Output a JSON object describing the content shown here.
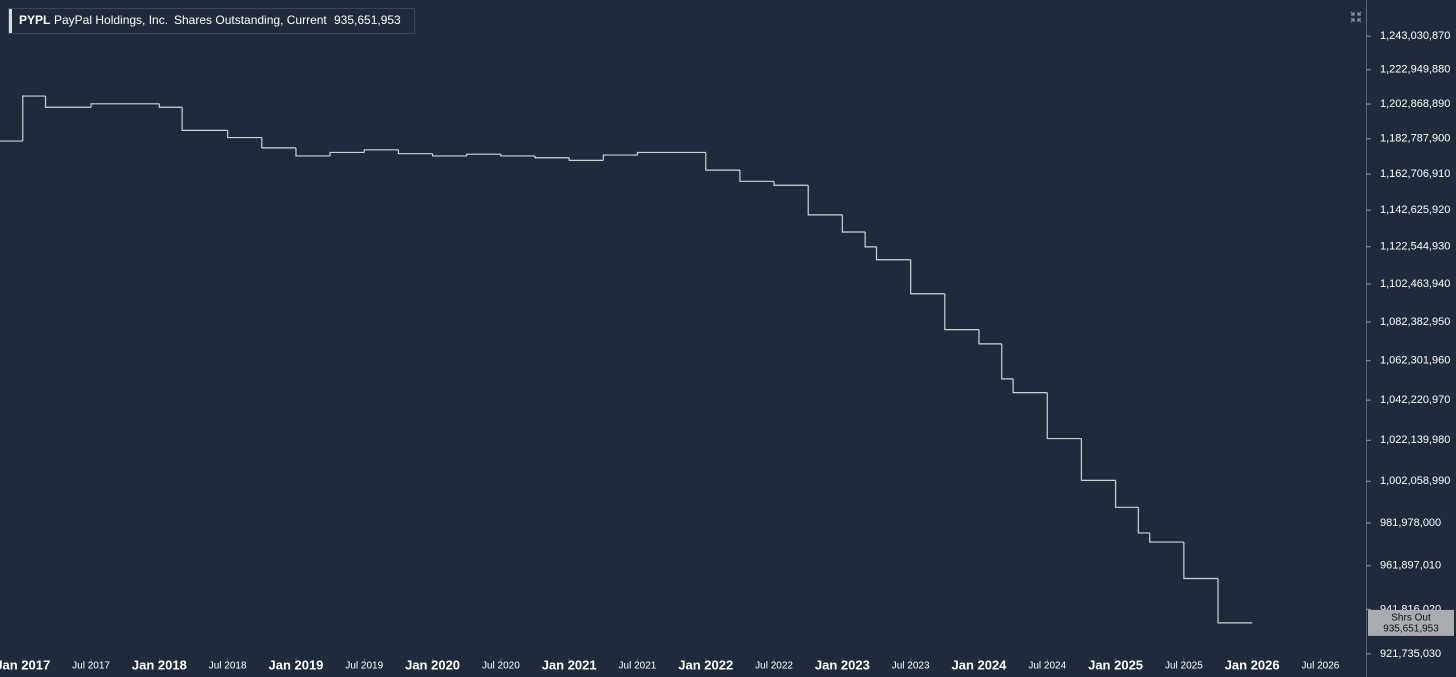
{
  "header": {
    "ticker": "PYPL",
    "company": "PayPal Holdings, Inc.",
    "metric": "Shares Outstanding, Current",
    "current_value": "935,651,953"
  },
  "chart_data": {
    "type": "step-line",
    "series_short_name": "Shrs Out",
    "log_scale": true,
    "line_color": "#cfd3d8",
    "x": [
      "2016-11",
      "2017-01",
      "2017-03",
      "2017-07",
      "2018-01",
      "2018-03",
      "2018-07",
      "2018-10",
      "2019-01",
      "2019-04",
      "2019-07",
      "2019-10",
      "2020-01",
      "2020-04",
      "2020-07",
      "2020-10",
      "2021-01",
      "2021-04",
      "2021-07",
      "2022-01",
      "2022-04",
      "2022-07",
      "2022-10",
      "2023-01",
      "2023-03",
      "2023-04",
      "2023-07",
      "2023-10",
      "2024-01",
      "2024-03",
      "2024-04",
      "2024-07",
      "2024-10",
      "2025-01",
      "2025-03",
      "2025-04",
      "2025-07",
      "2025-10",
      "2026-01"
    ],
    "values": [
      1181500000,
      1207500000,
      1201000000,
      1203000000,
      1201000000,
      1187600000,
      1183500000,
      1177600000,
      1173000000,
      1175000000,
      1176500000,
      1174300000,
      1173000000,
      1174000000,
      1173000000,
      1172000000,
      1170500000,
      1173500000,
      1175000000,
      1165000000,
      1158700000,
      1156500000,
      1140000000,
      1130600000,
      1122500000,
      1115500000,
      1097300000,
      1078400000,
      1071000000,
      1053000000,
      1046000000,
      1023000000,
      1002500000,
      989500000,
      977300000,
      973000000,
      956000000,
      935651953,
      935651953
    ],
    "xlim": [
      "2016-11",
      "2026-11"
    ],
    "xticks": [
      {
        "value": "2017-01",
        "label": "Jan 2017"
      },
      {
        "value": "2017-07",
        "label": "Jul 2017"
      },
      {
        "value": "2018-01",
        "label": "Jan 2018"
      },
      {
        "value": "2018-07",
        "label": "Jul 2018"
      },
      {
        "value": "2019-01",
        "label": "Jan 2019"
      },
      {
        "value": "2019-07",
        "label": "Jul 2019"
      },
      {
        "value": "2020-01",
        "label": "Jan 2020"
      },
      {
        "value": "2020-07",
        "label": "Jul 2020"
      },
      {
        "value": "2021-01",
        "label": "Jan 2021"
      },
      {
        "value": "2021-07",
        "label": "Jul 2021"
      },
      {
        "value": "2022-01",
        "label": "Jan 2022"
      },
      {
        "value": "2022-07",
        "label": "Jul 2022"
      },
      {
        "value": "2023-01",
        "label": "Jan 2023"
      },
      {
        "value": "2023-07",
        "label": "Jul 2023"
      },
      {
        "value": "2024-01",
        "label": "Jan 2024"
      },
      {
        "value": "2024-07",
        "label": "Jul 2024"
      },
      {
        "value": "2025-01",
        "label": "Jan 2025"
      },
      {
        "value": "2025-07",
        "label": "Jul 2025"
      },
      {
        "value": "2026-01",
        "label": "Jan 2026"
      },
      {
        "value": "2026-07",
        "label": "Jul 2026"
      }
    ],
    "ylim": [
      919000000,
      1265000000
    ],
    "yticks": [
      {
        "value": 1243030870,
        "label": "1,243,030,870"
      },
      {
        "value": 1222949880,
        "label": "1,222,949,880"
      },
      {
        "value": 1202868890,
        "label": "1,202,868,890"
      },
      {
        "value": 1182787900,
        "label": "1,182,787,900"
      },
      {
        "value": 1162706910,
        "label": "1,162,706,910"
      },
      {
        "value": 1142625920,
        "label": "1,142,625,920"
      },
      {
        "value": 1122544930,
        "label": "1,122,544,930"
      },
      {
        "value": 1102463940,
        "label": "1,102,463,940"
      },
      {
        "value": 1082382950,
        "label": "1,082,382,950"
      },
      {
        "value": 1062301960,
        "label": "1,062,301,960"
      },
      {
        "value": 1042220970,
        "label": "1,042,220,970"
      },
      {
        "value": 1022139980,
        "label": "1,022,139,980"
      },
      {
        "value": 1002058990,
        "label": "1,002,058,990"
      },
      {
        "value": 981978000,
        "label": "981,978,000"
      },
      {
        "value": 961897010,
        "label": "961,897,010"
      },
      {
        "value": 941816020,
        "label": "941,816,020"
      },
      {
        "value": 921735030,
        "label": "921,735,030"
      }
    ]
  }
}
